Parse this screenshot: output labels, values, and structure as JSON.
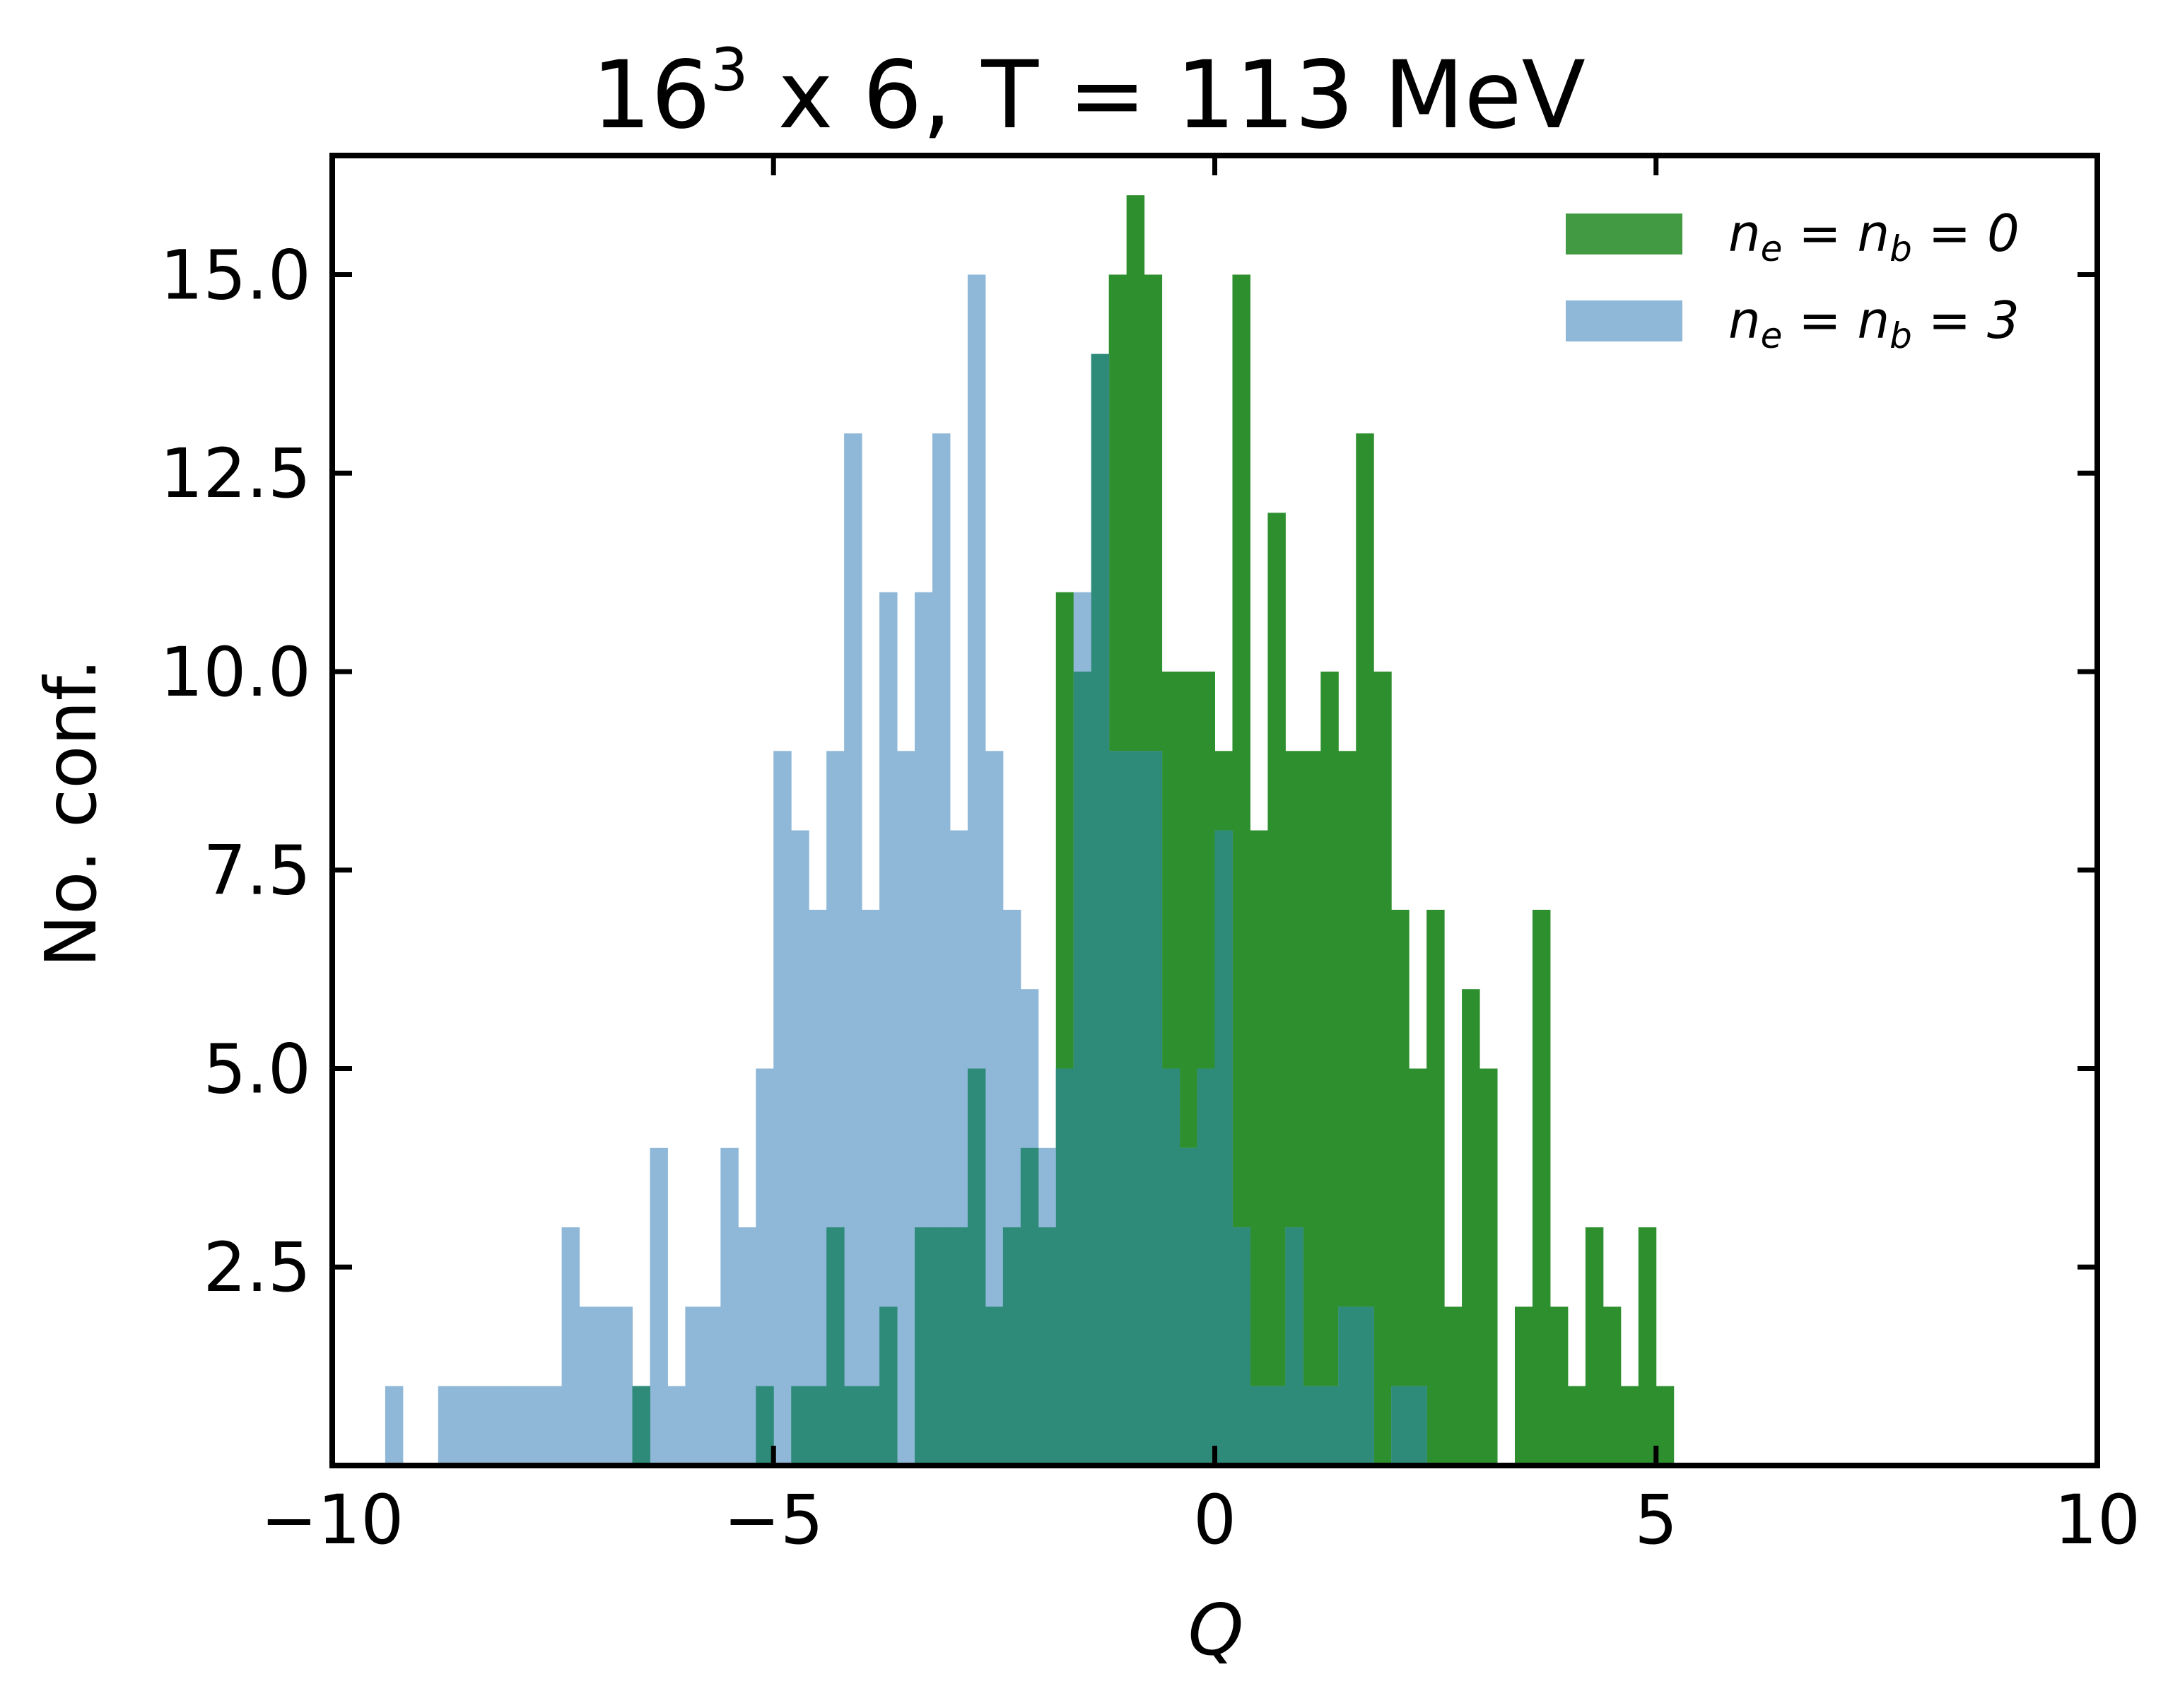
{
  "chart_data": {
    "type": "bar",
    "title_base": "16",
    "title_sup": "3",
    "title_rest": " x 6, T = 113 MeV",
    "xlabel": "Q",
    "ylabel": "No. conf.",
    "xlim": [
      -10,
      10
    ],
    "ylim": [
      0,
      16.5
    ],
    "x_ticks": [
      -10,
      -5,
      0,
      5,
      10
    ],
    "x_tick_labels": [
      "−10",
      "−5",
      "0",
      "5",
      "10"
    ],
    "y_ticks": [
      2.5,
      5.0,
      7.5,
      10.0,
      12.5,
      15.0
    ],
    "y_tick_labels": [
      "2.5",
      "5.0",
      "7.5",
      "10.0",
      "12.5",
      "15.0"
    ],
    "bin_width": 0.2,
    "legend_position": "top-right",
    "legend": [
      "n_e = n_b = 0",
      "n_e = n_b = 3"
    ],
    "series": [
      {
        "name": "n_e = n_b = 0",
        "color": "#2e8f2e",
        "opacity": 0.9,
        "bins": [
          [
            -6.6,
            1
          ],
          [
            -5.2,
            1
          ],
          [
            -4.8,
            1
          ],
          [
            -4.6,
            1
          ],
          [
            -4.4,
            3
          ],
          [
            -4.2,
            1
          ],
          [
            -4.0,
            1
          ],
          [
            -3.8,
            2
          ],
          [
            -3.4,
            3
          ],
          [
            -3.2,
            3
          ],
          [
            -3.0,
            3
          ],
          [
            -2.8,
            5
          ],
          [
            -2.6,
            2
          ],
          [
            -2.4,
            3
          ],
          [
            -2.2,
            4
          ],
          [
            -2.0,
            3
          ],
          [
            -1.8,
            11
          ],
          [
            -1.6,
            10
          ],
          [
            -1.4,
            14
          ],
          [
            -1.2,
            15
          ],
          [
            -1.0,
            16
          ],
          [
            -0.8,
            15
          ],
          [
            -0.6,
            10
          ],
          [
            -0.4,
            10
          ],
          [
            -0.2,
            10
          ],
          [
            0.0,
            9
          ],
          [
            0.2,
            15
          ],
          [
            0.4,
            8
          ],
          [
            0.6,
            12
          ],
          [
            0.8,
            9
          ],
          [
            1.0,
            9
          ],
          [
            1.2,
            10
          ],
          [
            1.4,
            9
          ],
          [
            1.6,
            13
          ],
          [
            1.8,
            10
          ],
          [
            2.0,
            7
          ],
          [
            2.2,
            5
          ],
          [
            2.4,
            7
          ],
          [
            2.6,
            2
          ],
          [
            2.8,
            6
          ],
          [
            3.0,
            5
          ],
          [
            3.4,
            2
          ],
          [
            3.6,
            7
          ],
          [
            3.8,
            2
          ],
          [
            4.0,
            1
          ],
          [
            4.2,
            3
          ],
          [
            4.4,
            2
          ],
          [
            4.6,
            1
          ],
          [
            4.8,
            3
          ],
          [
            5.0,
            1
          ]
        ]
      },
      {
        "name": "n_e = n_b = 3",
        "color": "#8fb8d8",
        "opacity": 1.0,
        "bins": [
          [
            -9.4,
            1
          ],
          [
            -8.8,
            1
          ],
          [
            -8.6,
            1
          ],
          [
            -8.4,
            1
          ],
          [
            -8.2,
            1
          ],
          [
            -8.0,
            1
          ],
          [
            -7.8,
            1
          ],
          [
            -7.6,
            1
          ],
          [
            -7.4,
            3
          ],
          [
            -7.2,
            2
          ],
          [
            -7.0,
            2
          ],
          [
            -6.8,
            2
          ],
          [
            -6.6,
            1
          ],
          [
            -6.4,
            4
          ],
          [
            -6.2,
            1
          ],
          [
            -6.0,
            2
          ],
          [
            -5.8,
            2
          ],
          [
            -5.6,
            4
          ],
          [
            -5.4,
            3
          ],
          [
            -5.2,
            5
          ],
          [
            -5.0,
            9
          ],
          [
            -4.8,
            8
          ],
          [
            -4.6,
            7
          ],
          [
            -4.4,
            9
          ],
          [
            -4.2,
            13
          ],
          [
            -4.0,
            7
          ],
          [
            -3.8,
            11
          ],
          [
            -3.6,
            9
          ],
          [
            -3.4,
            11
          ],
          [
            -3.2,
            13
          ],
          [
            -3.0,
            8
          ],
          [
            -2.8,
            15
          ],
          [
            -2.6,
            9
          ],
          [
            -2.4,
            7
          ],
          [
            -2.2,
            6
          ],
          [
            -2.0,
            13
          ],
          [
            -1.8,
            10
          ],
          [
            -1.6,
            11
          ],
          [
            -1.4,
            14
          ],
          [
            -1.2,
            9
          ],
          [
            -1.0,
            9
          ],
          [
            -0.8,
            9
          ],
          [
            -0.6,
            5
          ],
          [
            -0.4,
            4
          ],
          [
            -0.2,
            5
          ],
          [
            0.0,
            8
          ],
          [
            0.2,
            3
          ],
          [
            0.4,
            1
          ],
          [
            0.6,
            1
          ],
          [
            0.8,
            3
          ],
          [
            1.0,
            1
          ],
          [
            1.2,
            1
          ],
          [
            1.4,
            2
          ],
          [
            1.6,
            2
          ],
          [
            2.0,
            1
          ],
          [
            2.2,
            1
          ],
          [
            -2.0,
            4
          ],
          [
            -1.8,
            5
          ]
        ]
      }
    ]
  }
}
